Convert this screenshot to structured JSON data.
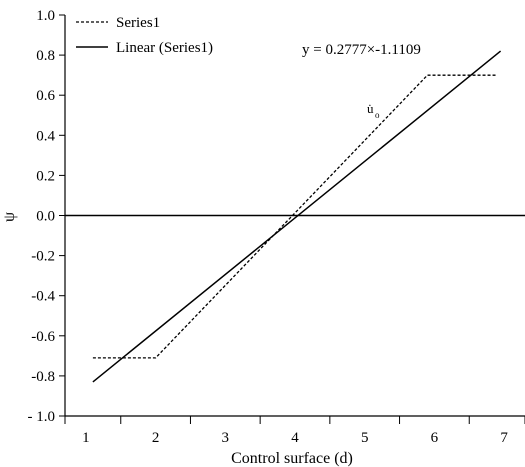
{
  "chart_data": {
    "type": "line",
    "title": "",
    "xlabel": "Control surface (d)",
    "ylabel": "ψ",
    "xlim": [
      0.7,
      7.3
    ],
    "ylim": [
      -1.0,
      1.0
    ],
    "xticks": [
      1,
      2,
      3,
      4,
      5,
      6,
      7
    ],
    "yticks": [
      1.0,
      0.8,
      0.6,
      0.4,
      0.2,
      0.0,
      -0.2,
      -0.4,
      -0.6,
      -0.8,
      -1.0
    ],
    "ytick_labels": [
      "1.0",
      "0.8",
      "0.6",
      "0.4",
      "0.2",
      "0.0",
      "-0.2",
      "-0.4",
      "-0.6",
      "-0.8",
      "- 1.0"
    ],
    "grid": false,
    "legend_position": "top-left",
    "series": [
      {
        "name": "Series1",
        "style": "dashed",
        "color": "#000000",
        "x": [
          1.1,
          2.0,
          5.9,
          6.9
        ],
        "y": [
          -0.71,
          -0.71,
          0.7,
          0.7
        ]
      },
      {
        "name": "Linear (Series1)",
        "style": "solid",
        "color": "#000000",
        "x": [
          1.1,
          6.95
        ],
        "y": [
          -0.83,
          0.82
        ]
      }
    ],
    "reference_line": {
      "y": 0.0
    },
    "annotations": [
      {
        "text": "y = 0.2777×-1.1109",
        "kind": "equation"
      },
      {
        "text": "u̇",
        "sub": "o",
        "kind": "label"
      }
    ]
  }
}
